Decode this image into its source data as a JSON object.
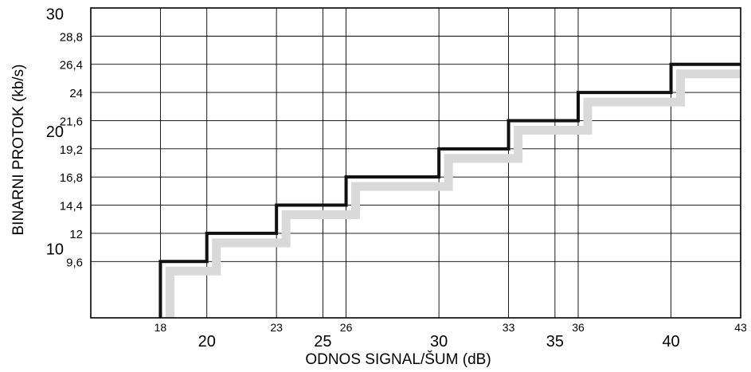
{
  "chart_data": {
    "type": "line",
    "step": true,
    "title": "",
    "xlabel": "ODNOS SIGNAL/ŠUM  (dB)",
    "ylabel": "BINARNI PROTOK (kb/s)",
    "xlim": [
      15,
      43
    ],
    "ylim": [
      4.8,
      31.2
    ],
    "grid": true,
    "x_ticks_major": [
      "20",
      "25",
      "30",
      "35",
      "40"
    ],
    "x_ticks_minor": [
      "18",
      "23",
      "26",
      "33",
      "36",
      "43"
    ],
    "y_ticks_major": [
      "10",
      "20",
      "30"
    ],
    "y_ticks_minor": [
      "9,6",
      "12",
      "14,4",
      "16,8",
      "19,2",
      "21,6",
      "24",
      "26,4",
      "28,8"
    ],
    "series": [
      {
        "x": [
          18,
          20,
          23,
          26,
          30,
          33,
          36,
          40,
          43
        ],
        "y": [
          9.6,
          12,
          14.4,
          16.8,
          19.2,
          21.6,
          24,
          26.4,
          26.4
        ],
        "color": "#111111",
        "shadow_color": "#d9d9d9"
      }
    ]
  }
}
